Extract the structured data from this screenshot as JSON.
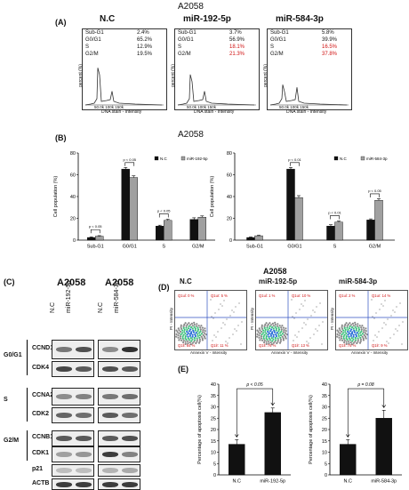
{
  "figure_title": "A2058",
  "panel_A": {
    "label": "(A)",
    "title": "A2058",
    "plots": [
      {
        "title": "N.C",
        "stats": [
          [
            "Sub-G1",
            "2.4%"
          ],
          [
            "G0/G1",
            "65.2%"
          ],
          [
            "S",
            "12.9%"
          ],
          [
            "G2/M",
            "19.5%"
          ]
        ],
        "highlight": []
      },
      {
        "title": "miR-192-5p",
        "stats": [
          [
            "Sub-G1",
            "3.7%"
          ],
          [
            "G0/G1",
            "56.9%"
          ],
          [
            "S",
            "18.1%"
          ],
          [
            "G2/M",
            "21.3%"
          ]
        ],
        "highlight": [
          2,
          3
        ]
      },
      {
        "title": "miR-584-3p",
        "stats": [
          [
            "Sub-G1",
            "5.8%"
          ],
          [
            "G0/G1",
            "39.9%"
          ],
          [
            "S",
            "16.5%"
          ],
          [
            "G2/M",
            "37.8%"
          ]
        ],
        "highlight": [
          2,
          3
        ]
      }
    ],
    "xaxis": "DNA stain - Intensity",
    "yaxis": "percent (%)",
    "xticks": [
      "50.0k",
      "100k",
      "150k"
    ]
  },
  "panel_B": {
    "label": "(B)",
    "title": "A2058",
    "ylabel": "Cell population (%)",
    "pvals_left": [
      "p < 0.05",
      "p < 0.05",
      "p < 0.05"
    ],
    "pvals_right": [
      "p < 0.01",
      "p < 0.01",
      "p < 0.05"
    ]
  },
  "panel_C": {
    "label": "(C)",
    "col1_title": "A2058",
    "col2_title": "A2058",
    "lanes1": [
      "N.C",
      "miR-192-5p"
    ],
    "lanes2": [
      "N.C",
      "miR-584-3p"
    ],
    "groups": [
      "G0/G1",
      "S",
      "G2/M"
    ],
    "proteins": [
      "CCND1",
      "CDK4",
      "CCNA2",
      "CDK2",
      "CCNB1",
      "CDK1",
      "p21",
      "ACTB"
    ]
  },
  "panel_D": {
    "label": "(D)",
    "title": "A2058",
    "plots": [
      {
        "title": "N.C",
        "q": [
          "Q1ul: 0 %",
          "Q1ur: 5 %",
          "Q1ll: 84 %",
          "Q1lr: 11 %"
        ]
      },
      {
        "title": "miR-192-5p",
        "q": [
          "Q1ul: 1 %",
          "Q1ur: 10 %",
          "Q1ll: 76 %",
          "Q1lr: 13 %"
        ]
      },
      {
        "title": "miR-584-3p",
        "q": [
          "Q1ul: 2 %",
          "Q1ur: 14 %",
          "Q1ll: 75 %",
          "Q1lr: 9 %"
        ]
      }
    ],
    "xaxis": "Annexin V - Intensity",
    "yaxis": "PI - Intensity"
  },
  "panel_E": {
    "label": "(E)",
    "ylabel": "Percentage of apoptosis cell(%)",
    "pval_left": "p < 0.05",
    "pval_right": "p = 0.08"
  },
  "chart_data": [
    {
      "type": "bar",
      "title": "A2058",
      "ylabel": "Cell population (%)",
      "categories": [
        "Sub-G1",
        "G0/G1",
        "S",
        "G2/M"
      ],
      "series": [
        {
          "name": "N.C",
          "values": [
            2.4,
            65.2,
            12.9,
            19.0
          ],
          "errors": [
            0.5,
            1.5,
            0.8,
            1.5
          ],
          "color": "#111111"
        },
        {
          "name": "miR-192-5p",
          "values": [
            3.6,
            57.5,
            18.1,
            21.0
          ],
          "errors": [
            0.5,
            1.5,
            1.0,
            1.2
          ],
          "color": "#a0a0a0"
        }
      ],
      "ylim": [
        0,
        80
      ],
      "yticks": [
        0,
        20,
        40,
        60,
        80
      ]
    },
    {
      "type": "bar",
      "ylabel": "Cell population (%)",
      "categories": [
        "Sub-G1",
        "G0/G1",
        "S",
        "G2/M"
      ],
      "series": [
        {
          "name": "N.C",
          "values": [
            2.4,
            65.2,
            12.9,
            18.5
          ],
          "errors": [
            0.5,
            1.5,
            1.2,
            1.0
          ],
          "color": "#111111"
        },
        {
          "name": "miR-584-3p",
          "values": [
            4.0,
            39.0,
            16.5,
            36.5
          ],
          "errors": [
            0.5,
            1.8,
            1.0,
            1.5
          ],
          "color": "#a0a0a0"
        }
      ],
      "ylim": [
        0,
        80
      ],
      "yticks": [
        0,
        20,
        40,
        60,
        80
      ]
    },
    {
      "type": "bar",
      "ylabel": "Percentage of apoptosis cell(%)",
      "categories": [
        "N.C",
        "miR-192-5p"
      ],
      "values": [
        13.5,
        27.5
      ],
      "errors": [
        2.0,
        2.0
      ],
      "ylim": [
        0,
        40
      ],
      "yticks": [
        0,
        5,
        10,
        15,
        20,
        25,
        30,
        35,
        40
      ]
    },
    {
      "type": "bar",
      "ylabel": "Percentage of apoptosis cell(%)",
      "categories": [
        "N.C",
        "miR-584-3p"
      ],
      "values": [
        13.5,
        25.0
      ],
      "errors": [
        2.0,
        3.5
      ],
      "ylim": [
        0,
        40
      ],
      "yticks": [
        0,
        5,
        10,
        15,
        20,
        25,
        30,
        35,
        40
      ]
    }
  ]
}
